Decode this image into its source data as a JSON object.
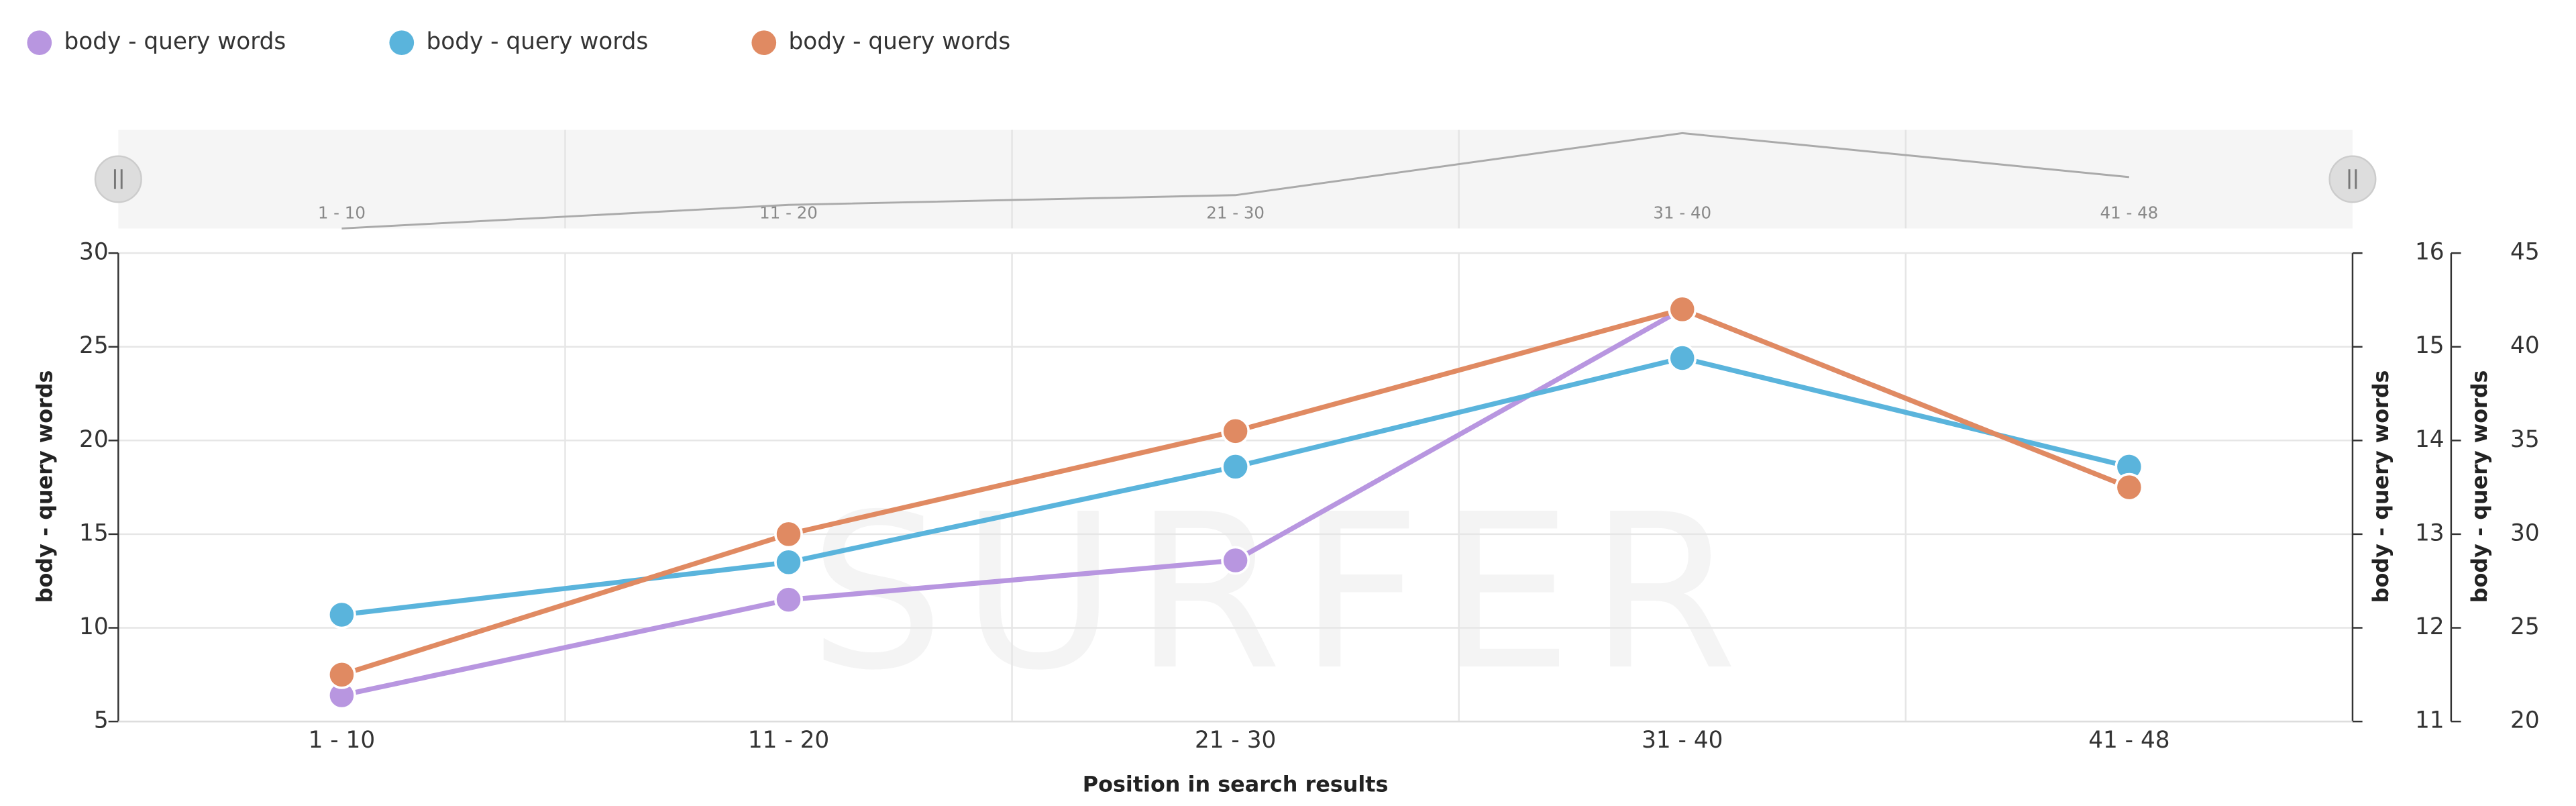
{
  "chart_data": {
    "type": "line",
    "watermark": "SURFER",
    "xlabel": "Position in search results",
    "ylabel": "body - query words",
    "y2label": "body - query words",
    "y3label": "body - query words",
    "categories": [
      "1 - 10",
      "11 - 20",
      "21 - 30",
      "31 - 40",
      "41 - 48"
    ],
    "series": [
      {
        "name": "body - query words",
        "color": "#b896e0",
        "values": [
          6.4,
          11.5,
          13.6,
          27.0,
          17.5
        ]
      },
      {
        "name": "body - query words",
        "color": "#5ab4dc",
        "axis": "y2",
        "values": [
          12.14,
          12.7,
          13.72,
          14.88,
          13.72
        ]
      },
      {
        "name": "body - query words",
        "color": "#e08a62",
        "axis": "y3",
        "values": [
          22.5,
          30.0,
          35.5,
          42.0,
          32.5
        ]
      }
    ],
    "ylim": [
      5,
      30
    ],
    "yticks": [
      5,
      10,
      15,
      20,
      25,
      30
    ],
    "y2lim": [
      11,
      16
    ],
    "y2ticks": [
      11,
      12,
      13,
      14,
      15,
      16
    ],
    "y3lim": [
      20,
      45
    ],
    "y3ticks": [
      20,
      25,
      30,
      35,
      40,
      45
    ],
    "grid": true,
    "navigator": true,
    "legend": "top-left"
  }
}
